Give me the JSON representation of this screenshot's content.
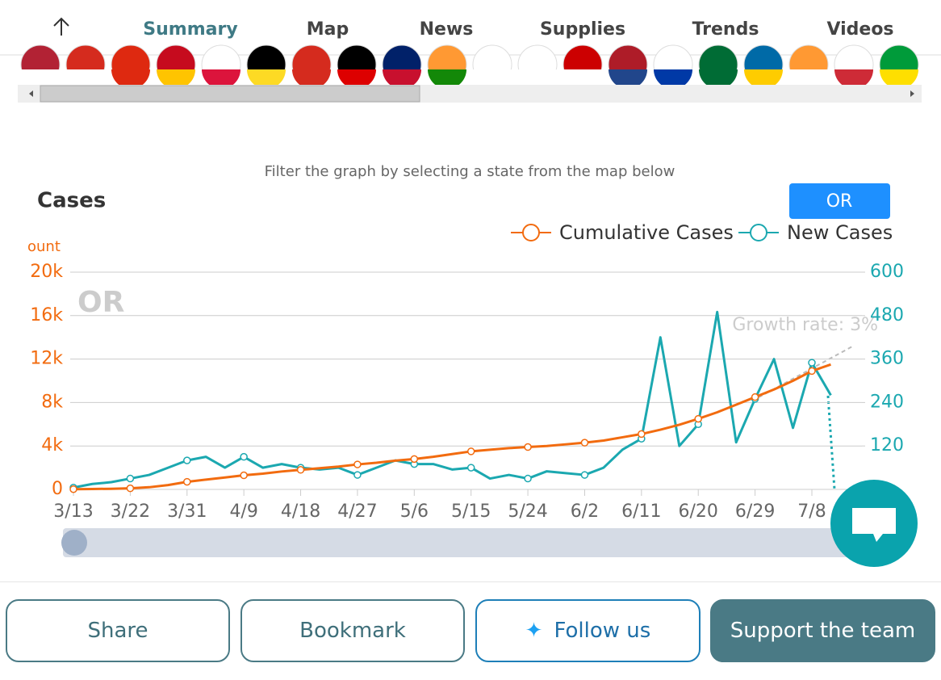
{
  "nav": {
    "items": [
      "Summary",
      "Map",
      "News",
      "Supplies",
      "Trends",
      "Videos"
    ]
  },
  "filter_hint": "Filter the graph by selecting a state from the map below",
  "filter_button": "OR",
  "buttons": [
    "Share",
    "Bookmark",
    "Follow us",
    "Support the team"
  ],
  "chart_data": {
    "type": "line",
    "title": "Cases",
    "y_label": "ount",
    "watermark": "OR",
    "annotation": "Growth rate: 3%",
    "categories": [
      "3/13",
      "3/16",
      "3/19",
      "3/22",
      "3/25",
      "3/28",
      "3/31",
      "4/3",
      "4/6",
      "4/9",
      "4/12",
      "4/15",
      "4/18",
      "4/21",
      "4/24",
      "4/27",
      "4/30",
      "5/3",
      "5/6",
      "5/9",
      "5/12",
      "5/15",
      "5/18",
      "5/21",
      "5/24",
      "5/27",
      "5/30",
      "6/2",
      "6/5",
      "6/8",
      "6/11",
      "6/14",
      "6/17",
      "6/20",
      "6/23",
      "6/26",
      "6/29",
      "7/2",
      "7/5",
      "7/8",
      "7/11"
    ],
    "xticks": [
      "3/13",
      "3/22",
      "3/31",
      "4/9",
      "4/18",
      "4/27",
      "5/6",
      "5/15",
      "5/24",
      "6/2",
      "6/11",
      "6/20",
      "6/29",
      "7/8"
    ],
    "series": [
      {
        "name": "Cumulative Cases",
        "color": "#f26b0f",
        "values": [
          20,
          40,
          60,
          100,
          200,
          400,
          700,
          900,
          1100,
          1300,
          1450,
          1650,
          1800,
          1950,
          2100,
          2300,
          2450,
          2650,
          2800,
          3000,
          3250,
          3500,
          3650,
          3800,
          3900,
          4000,
          4150,
          4300,
          4500,
          4800,
          5100,
          5500,
          5950,
          6500,
          7100,
          7800,
          8500,
          9200,
          10000,
          10900,
          11500
        ]
      },
      {
        "name": "New Cases",
        "color": "#1ba8b0",
        "axis": "y2",
        "values": [
          5,
          15,
          20,
          30,
          40,
          60,
          80,
          90,
          60,
          90,
          60,
          70,
          60,
          55,
          60,
          40,
          60,
          80,
          70,
          70,
          55,
          60,
          30,
          40,
          30,
          50,
          45,
          40,
          60,
          110,
          140,
          420,
          120,
          180,
          490,
          130,
          250,
          360,
          170,
          350,
          260
        ]
      }
    ],
    "ylim": [
      0,
      20000
    ],
    "yticks": [
      0,
      {
        "value": 4000,
        "label": "4k"
      },
      {
        "value": 8000,
        "label": "8k"
      },
      {
        "value": 12000,
        "label": "12k"
      },
      {
        "value": 16000,
        "label": "16k"
      },
      {
        "value": 20000,
        "label": "20k"
      }
    ],
    "y2lim": [
      0,
      600
    ],
    "y2ticks": [
      120,
      240,
      360,
      480,
      600
    ],
    "grid": true
  }
}
